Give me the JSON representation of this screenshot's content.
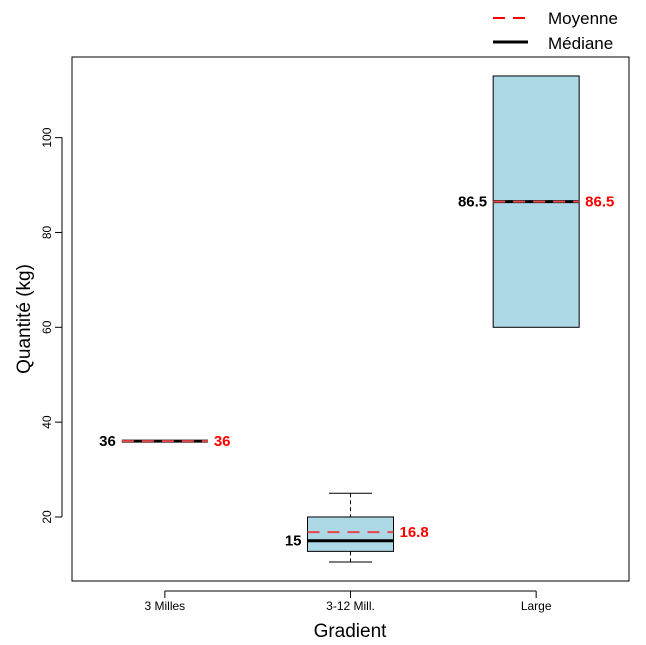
{
  "chart_data": {
    "type": "box",
    "xlabel": "Gradient",
    "ylabel": "Quantité (kg)",
    "categories": [
      "3 Milles",
      "3-12 Mill.",
      "Large"
    ],
    "boxes": [
      {
        "category": "3 Milles",
        "min": 36,
        "q1": 36,
        "median": 36,
        "q3": 36,
        "max": 36,
        "mean": 36,
        "median_label": "36",
        "mean_label": "36"
      },
      {
        "category": "3-12 Mill.",
        "min": 10.5,
        "q1": 12.75,
        "median": 15,
        "q3": 20,
        "max": 25,
        "mean": 16.8,
        "median_label": "15",
        "mean_label": "16.8"
      },
      {
        "category": "Large",
        "min": 60,
        "q1": 60,
        "median": 86.5,
        "q3": 113,
        "max": 113,
        "mean": 86.5,
        "median_label": "86.5",
        "mean_label": "86.5"
      }
    ],
    "ylim": [
      6.5,
      117
    ],
    "yticks": [
      20,
      40,
      60,
      80,
      100
    ],
    "legend": {
      "position": "top-right",
      "entries": [
        {
          "label": "Moyenne",
          "style": "dashed",
          "color": "#ff0000"
        },
        {
          "label": "Médiane",
          "style": "solid",
          "color": "#000000"
        }
      ]
    },
    "colors": {
      "box_fill": "#add8e6",
      "mean_line": "#e8464a",
      "mean_text": "#ff0000",
      "median_line": "#000000"
    }
  }
}
